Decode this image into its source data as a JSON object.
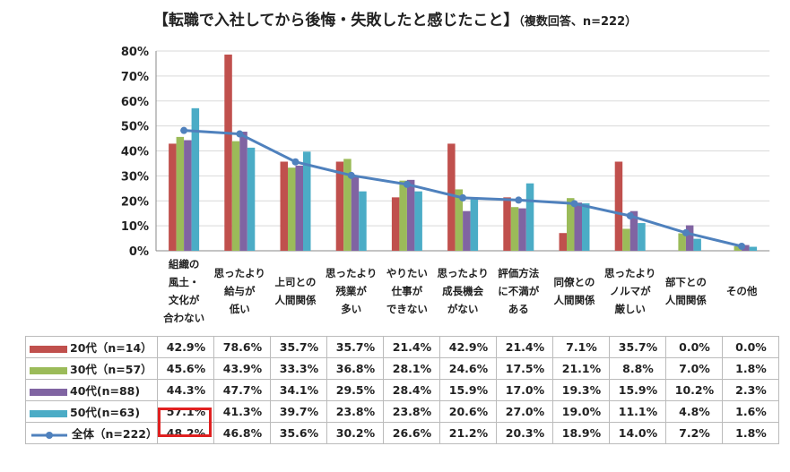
{
  "title": {
    "main": "【転職で入社してから後悔・失敗したと感じたこと】",
    "sub": "（複数回答、n=222）"
  },
  "chart_data": {
    "type": "bar",
    "title": "【転職で入社してから後悔・失敗したと感じたこと】（複数回答、n=222）",
    "categories": [
      "組織の風土・文化が合わない",
      "思ったより給与が低い",
      "上司との人間関係",
      "思ったより残業が多い",
      "やりたい仕事ができない",
      "思ったより成長機会がない",
      "評価方法に不満がある",
      "同僚との人間関係",
      "思ったよりノルマが厳しい",
      "部下との人間関係",
      "その他"
    ],
    "category_lines": [
      [
        "組織の",
        "風土・",
        "文化が",
        "合わない"
      ],
      [
        "思ったより",
        "給与が",
        "低い"
      ],
      [
        "上司との",
        "人間関係"
      ],
      [
        "思ったより",
        "残業が",
        "多い"
      ],
      [
        "やりたい",
        "仕事が",
        "できない"
      ],
      [
        "思ったより",
        "成長機会",
        "がない"
      ],
      [
        "評価方法",
        "に不満が",
        "ある"
      ],
      [
        "同僚との",
        "人間関係"
      ],
      [
        "思ったより",
        "ノルマが",
        "厳しい"
      ],
      [
        "部下との",
        "人間関係"
      ],
      [
        "その他"
      ]
    ],
    "series": [
      {
        "name": "20代（n=14）",
        "kind": "bar",
        "color": "#c0504d",
        "values": [
          42.9,
          78.6,
          35.7,
          35.7,
          21.4,
          42.9,
          21.4,
          7.1,
          35.7,
          0.0,
          0.0
        ]
      },
      {
        "name": "30代（n=57）",
        "kind": "bar",
        "color": "#9bbb59",
        "values": [
          45.6,
          43.9,
          33.3,
          36.8,
          28.1,
          24.6,
          17.5,
          21.1,
          8.8,
          7.0,
          1.8
        ]
      },
      {
        "name": "40代(n=88)",
        "kind": "bar",
        "color": "#8064a2",
        "values": [
          44.3,
          47.7,
          34.1,
          29.5,
          28.4,
          15.9,
          17.0,
          19.3,
          15.9,
          10.2,
          2.3
        ]
      },
      {
        "name": "50代(n=63)",
        "kind": "bar",
        "color": "#4bacc6",
        "values": [
          57.1,
          41.3,
          39.7,
          23.8,
          23.8,
          20.6,
          27.0,
          19.0,
          11.1,
          4.8,
          1.6
        ]
      },
      {
        "name": "全体（n=222）",
        "kind": "line",
        "color": "#4f81bd",
        "values": [
          48.2,
          46.8,
          35.6,
          30.2,
          26.6,
          21.2,
          20.3,
          18.9,
          14.0,
          7.2,
          1.8
        ]
      }
    ],
    "ylim": [
      0,
      80
    ],
    "yticks": [
      "0%",
      "10%",
      "20%",
      "30%",
      "40%",
      "50%",
      "60%",
      "70%",
      "80%"
    ],
    "highlight": {
      "series": "50代(n=63)",
      "category": "組織の風土・文化が合わない",
      "value": "57.1%"
    }
  }
}
